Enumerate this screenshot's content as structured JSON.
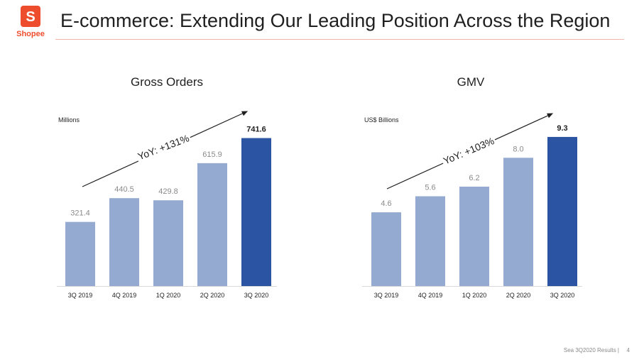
{
  "header": {
    "logo_glyph": "S",
    "logo_text": "Shopee",
    "title": "E-commerce: Extending Our Leading Position Across the Region"
  },
  "footer": {
    "text": "Sea 3Q2020 Results |",
    "page": "4"
  },
  "colors": {
    "bar_light": "#95aad0",
    "bar_dark": "#2b54a3",
    "brand": "#ee4d2d"
  },
  "chart_data": [
    {
      "type": "bar",
      "title": "Gross Orders",
      "unit_label": "Millions",
      "categories": [
        "3Q 2019",
        "4Q 2019",
        "1Q 2020",
        "2Q 2020",
        "3Q 2020"
      ],
      "values": [
        321.4,
        440.5,
        429.8,
        615.9,
        741.6
      ],
      "value_labels": [
        "321.4",
        "440.5",
        "429.8",
        "615.9",
        "741.6"
      ],
      "highlight_index": 4,
      "annotation": "YoY: +131%",
      "ylim": [
        0,
        900
      ]
    },
    {
      "type": "bar",
      "title": "GMV",
      "unit_label": "US$ Billions",
      "categories": [
        "3Q 2019",
        "4Q 2019",
        "1Q 2020",
        "2Q 2020",
        "3Q 2020"
      ],
      "values": [
        4.6,
        5.6,
        6.2,
        8.0,
        9.3
      ],
      "value_labels": [
        "4.6",
        "5.6",
        "6.2",
        "8.0",
        "9.3"
      ],
      "highlight_index": 4,
      "annotation": "YoY: +103%",
      "ylim": [
        0,
        11.2
      ]
    }
  ]
}
